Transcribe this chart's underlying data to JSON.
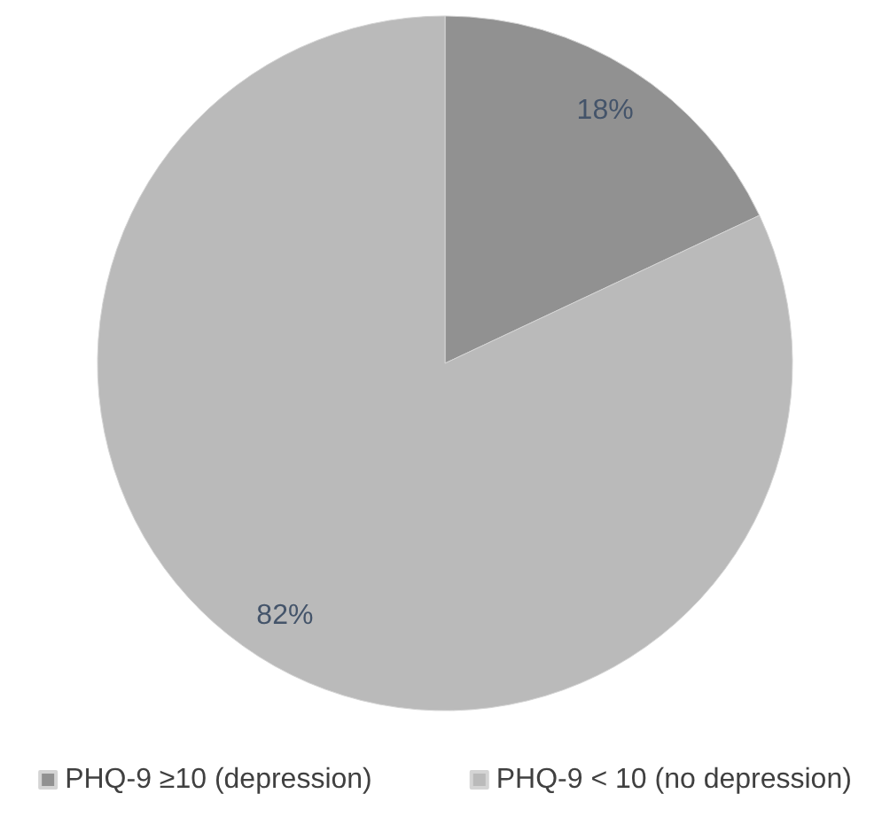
{
  "chart_data": {
    "type": "pie",
    "categories": [
      "PHQ-9 ≥10 (depression)",
      "PHQ-9 < 10 (no depression)"
    ],
    "values": [
      18,
      82
    ],
    "colors": [
      "#919191",
      "#bababa"
    ],
    "value_labels": [
      "18%",
      "82%"
    ],
    "legend": "bottom"
  }
}
